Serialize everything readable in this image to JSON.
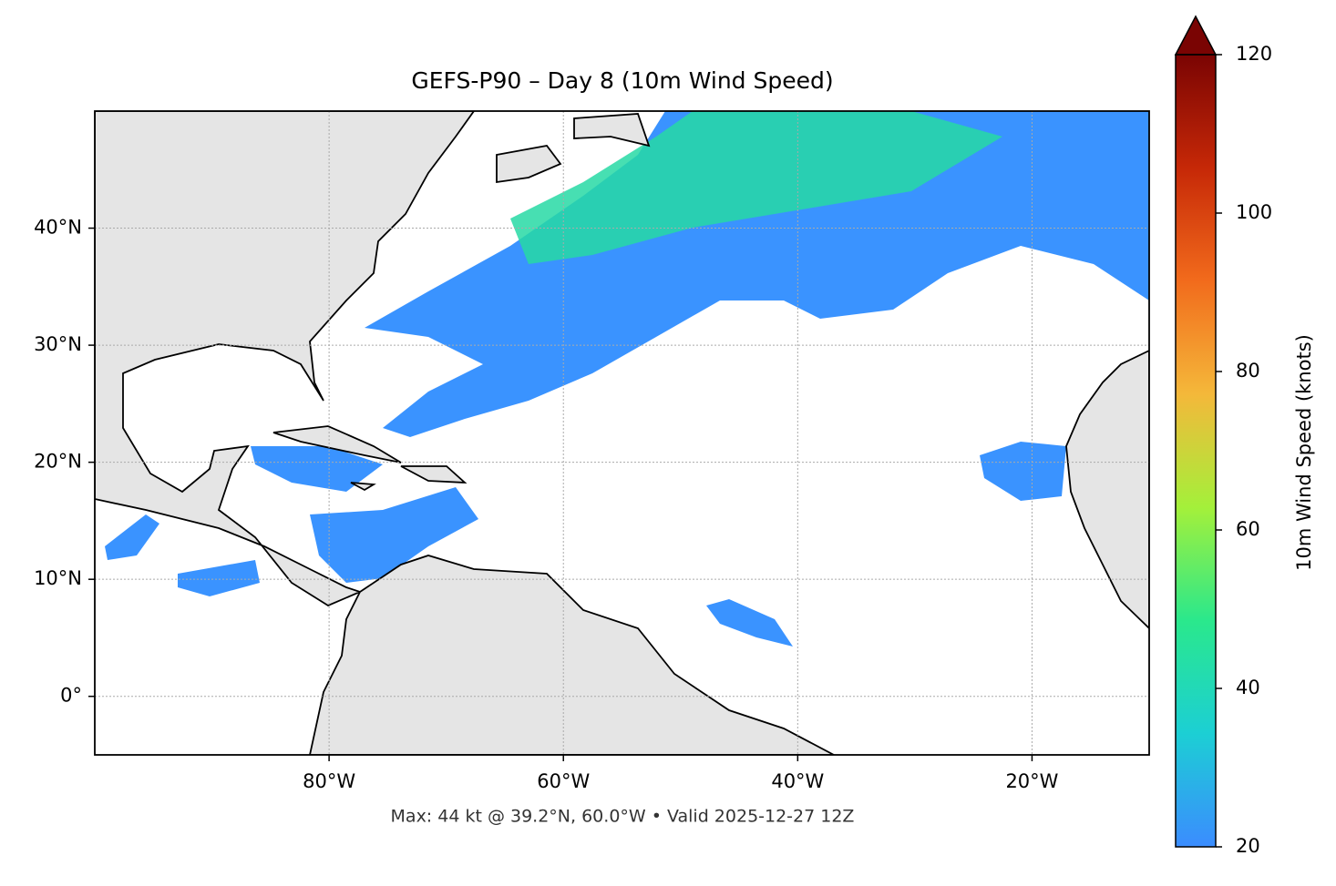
{
  "chart_data": {
    "type": "map",
    "title": "GEFS-P90 – Day 8 (10m Wind Speed)",
    "footer": "Max: 44 kt @ 39.2°N, 60.0°W • Valid 2025-12-27 12Z",
    "xlim": [
      -100,
      -10
    ],
    "ylim": [
      -5,
      50
    ],
    "xticks": [
      {
        "value": -80,
        "label": "80°W"
      },
      {
        "value": -60,
        "label": "60°W"
      },
      {
        "value": -40,
        "label": "40°W"
      },
      {
        "value": -20,
        "label": "20°W"
      }
    ],
    "yticks": [
      {
        "value": 0,
        "label": "0°"
      },
      {
        "value": 10,
        "label": "10°N"
      },
      {
        "value": 20,
        "label": "20°N"
      },
      {
        "value": 30,
        "label": "30°N"
      },
      {
        "value": 40,
        "label": "40°N"
      }
    ],
    "grid": true,
    "colorbar": {
      "label": "10m Wind Speed (knots)",
      "lim": [
        20,
        120
      ],
      "ticks": [
        20,
        40,
        60,
        80,
        100,
        120
      ],
      "extend": "max",
      "colors": [
        "#3b8cff",
        "#1ccfd4",
        "#2ae88c",
        "#a4f03a",
        "#f4b83a",
        "#f26b1c",
        "#c62807",
        "#7a0403"
      ]
    }
  }
}
